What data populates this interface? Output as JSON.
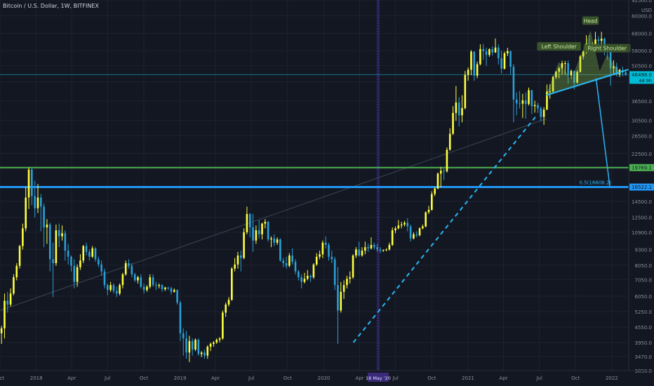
{
  "header": {
    "symbol": "Bitcoin / U.S. Dollar, 1W, BITFINEX"
  },
  "colors": {
    "background": "#131722",
    "up": "#ffff3d",
    "down": "#2a9fd6",
    "resistance": "#4caf50",
    "support": "#2196f3",
    "trendline": "#29b6f6",
    "pattern_fill": "#8bc34a",
    "price_line": "#1c6f88"
  },
  "chart_data": {
    "type": "candlestick",
    "title": "Bitcoin / U.S. Dollar, 1W, BITFINEX",
    "y_scale": "log",
    "ylim": [
      3050,
      92500
    ],
    "y_axis_currency": "USD",
    "y_ticks": [
      92500,
      80000,
      68000,
      58000,
      50500,
      43600,
      36500,
      30500,
      26500,
      22500,
      19500,
      16500,
      14500,
      12500,
      10900,
      9300,
      8050,
      7050,
      6050,
      5250,
      4550,
      3950,
      3470,
      3050
    ],
    "y_tick_labels": [
      "92500.0",
      "80000.0",
      "68000.0",
      "58000.0",
      "50500.0",
      "43600.0",
      "36500.0",
      "30500.0",
      "26500.0",
      "22500.0",
      "19500.0",
      "16500.0",
      "14500.0",
      "12500.0",
      "10900.0",
      "9300.0",
      "8050.0",
      "7050.0",
      "6050.0",
      "5250.0",
      "4550.0",
      "3950.0",
      "3470.0",
      "3050.0"
    ],
    "x_axis": {
      "start": "2017-10-01",
      "end": "2022-02-13",
      "tick_labels": [
        "Oct",
        "2018",
        "Apr",
        "Jul",
        "Oct",
        "2019",
        "Apr",
        "Jul",
        "Oct",
        "2020",
        "Apr",
        "18 May '20",
        "Jul",
        "Oct",
        "2021",
        "Apr",
        "Jul",
        "Oct",
        "2022"
      ],
      "tick_dates": [
        "2017-10-01",
        "2018-01-01",
        "2018-04-01",
        "2018-07-01",
        "2018-10-01",
        "2019-01-01",
        "2019-04-01",
        "2019-07-01",
        "2019-10-01",
        "2020-01-01",
        "2020-04-01",
        "2020-05-18",
        "2020-07-01",
        "2020-10-01",
        "2021-01-01",
        "2021-04-01",
        "2021-07-01",
        "2021-10-01",
        "2022-01-01"
      ],
      "highlighted_label": "18 May '20"
    },
    "horizontal_levels": [
      {
        "value": 19769.1,
        "label": "19769.1",
        "color": "#4caf50"
      },
      {
        "value": 16522.1,
        "label": "16522.1",
        "color": "#2196f3"
      }
    ],
    "current_price": {
      "value": 46498.0,
      "label": "46498.0",
      "sub_label": "4d 9h"
    },
    "annotations": [
      {
        "text": "Head",
        "date": "2021-11-08",
        "value": 76000
      },
      {
        "text": "Left Shoulder",
        "date": "2021-08-20",
        "value": 60000
      },
      {
        "text": "Right Shoulder",
        "date": "2021-12-20",
        "value": 59000
      },
      {
        "text": "0.5(16608.2)",
        "date": "2021-12-27",
        "value": 16608.2
      }
    ],
    "neckline": {
      "from": {
        "date": "2021-07-19",
        "value": 38500
      },
      "to": {
        "date": "2022-02-13",
        "value": 48800
      }
    },
    "projection": {
      "from": {
        "date": "2021-11-22",
        "value": 45000
      },
      "to": {
        "date": "2021-12-27",
        "value": 16608.2
      }
    },
    "dashed_trendline": {
      "from": {
        "date": "2020-03-16",
        "value": 3950
      },
      "to": {
        "date": "2021-06-21",
        "value": 31500
      }
    },
    "log_trendline": {
      "from": {
        "date": "2017-10-01",
        "value": 5300
      },
      "to": {
        "date": "2021-07-19",
        "value": 31000
      }
    },
    "candles": [
      [
        4300,
        4600,
        3900,
        4500
      ],
      [
        4500,
        6200,
        4100,
        5800
      ],
      [
        5800,
        6300,
        5200,
        5600
      ],
      [
        5600,
        6500,
        5500,
        6200
      ],
      [
        6200,
        7400,
        6100,
        7200
      ],
      [
        7200,
        8200,
        7000,
        8000
      ],
      [
        8000,
        9700,
        7800,
        9600
      ],
      [
        9600,
        11800,
        9300,
        11300
      ],
      [
        11300,
        16500,
        11000,
        15000
      ],
      [
        15000,
        19800,
        13500,
        19400
      ],
      [
        19400,
        19700,
        14000,
        15200
      ],
      [
        15200,
        17500,
        12500,
        13600
      ],
      [
        13600,
        17000,
        13000,
        15000
      ],
      [
        15000,
        15500,
        11000,
        13800
      ],
      [
        13800,
        14200,
        9500,
        11400
      ],
      [
        11400,
        12300,
        9800,
        11700
      ],
      [
        11700,
        11900,
        7600,
        8500
      ],
      [
        8500,
        9900,
        6000,
        8200
      ],
      [
        8200,
        11700,
        8000,
        11100
      ],
      [
        11100,
        11800,
        9500,
        10500
      ],
      [
        10500,
        11600,
        10100,
        10800
      ],
      [
        10800,
        11100,
        8400,
        9200
      ],
      [
        9200,
        9800,
        8100,
        8700
      ],
      [
        8700,
        8800,
        7600,
        8000
      ],
      [
        8000,
        8500,
        6500,
        6900
      ],
      [
        6900,
        8100,
        6600,
        7900
      ],
      [
        7900,
        8900,
        7700,
        8400
      ],
      [
        8400,
        9700,
        8200,
        9600
      ],
      [
        9600,
        9900,
        8800,
        9100
      ],
      [
        9100,
        9300,
        8400,
        8700
      ],
      [
        8700,
        9600,
        8600,
        9400
      ],
      [
        9400,
        9500,
        8300,
        8500
      ],
      [
        8500,
        8700,
        7900,
        8100
      ],
      [
        8100,
        8400,
        7300,
        7600
      ],
      [
        7600,
        7800,
        6500,
        6700
      ],
      [
        6700,
        6800,
        6100,
        6400
      ],
      [
        6400,
        6900,
        6300,
        6700
      ],
      [
        6700,
        6800,
        6200,
        6350
      ],
      [
        6350,
        6600,
        6000,
        6200
      ],
      [
        6200,
        6800,
        6100,
        6700
      ],
      [
        6700,
        7500,
        6500,
        7400
      ],
      [
        7400,
        8400,
        7300,
        8200
      ],
      [
        8200,
        8500,
        7800,
        8000
      ],
      [
        8000,
        8200,
        7200,
        7400
      ],
      [
        7400,
        7500,
        6900,
        7000
      ],
      [
        7000,
        7300,
        6800,
        7200
      ],
      [
        7200,
        7400,
        6500,
        6600
      ],
      [
        6600,
        6800,
        6200,
        6400
      ],
      [
        6400,
        6700,
        6300,
        6600
      ],
      [
        6600,
        7400,
        6500,
        7200
      ],
      [
        7200,
        7400,
        6600,
        6700
      ],
      [
        6700,
        6900,
        6400,
        6650
      ],
      [
        6650,
        6800,
        6500,
        6700
      ],
      [
        6700,
        6750,
        6300,
        6450
      ],
      [
        6450,
        6600,
        6350,
        6550
      ],
      [
        6550,
        6600,
        6400,
        6500
      ],
      [
        6500,
        6600,
        6150,
        6300
      ],
      [
        6300,
        6500,
        6250,
        6400
      ],
      [
        6400,
        6450,
        5600,
        5700
      ],
      [
        5700,
        5800,
        4000,
        4300
      ],
      [
        4300,
        4500,
        3500,
        4100
      ],
      [
        4100,
        4400,
        3400,
        3600
      ],
      [
        3600,
        4200,
        3300,
        4000
      ],
      [
        4000,
        4100,
        3500,
        3700
      ],
      [
        3700,
        4100,
        3650,
        4050
      ],
      [
        4050,
        4100,
        3500,
        3550
      ],
      [
        3550,
        3650,
        3450,
        3600
      ],
      [
        3600,
        3700,
        3400,
        3500
      ],
      [
        3500,
        3850,
        3400,
        3800
      ],
      [
        3800,
        3950,
        3650,
        3900
      ],
      [
        3900,
        4000,
        3800,
        3950
      ],
      [
        3950,
        4100,
        3900,
        4050
      ],
      [
        4050,
        4150,
        3950,
        4100
      ],
      [
        4100,
        5300,
        4050,
        5200
      ],
      [
        5200,
        5700,
        5000,
        5600
      ],
      [
        5600,
        6000,
        5500,
        5850
      ],
      [
        5850,
        7900,
        5800,
        7800
      ],
      [
        7800,
        8600,
        7600,
        8100
      ],
      [
        8100,
        9100,
        7800,
        8800
      ],
      [
        8800,
        9200,
        7600,
        8600
      ],
      [
        8600,
        11300,
        8500,
        10900
      ],
      [
        10900,
        13800,
        10700,
        12900
      ],
      [
        12900,
        13000,
        10400,
        11400
      ],
      [
        11400,
        12900,
        9100,
        10100
      ],
      [
        10100,
        11600,
        9800,
        11100
      ],
      [
        11100,
        12200,
        10300,
        10700
      ],
      [
        10700,
        11900,
        10200,
        11800
      ],
      [
        11800,
        12300,
        11300,
        12000
      ],
      [
        12000,
        12100,
        10000,
        10200
      ],
      [
        10200,
        10500,
        9500,
        10300
      ],
      [
        10300,
        10700,
        9600,
        9900
      ],
      [
        9900,
        10400,
        9700,
        10200
      ],
      [
        10200,
        10300,
        8300,
        8400
      ],
      [
        8400,
        8600,
        7900,
        8200
      ],
      [
        8200,
        8700,
        7800,
        8000
      ],
      [
        8000,
        9000,
        7900,
        8800
      ],
      [
        8800,
        9400,
        8100,
        8300
      ],
      [
        8300,
        8500,
        7400,
        7600
      ],
      [
        7600,
        7700,
        7000,
        7200
      ],
      [
        7200,
        7400,
        6500,
        6900
      ],
      [
        6900,
        7500,
        6800,
        7100
      ],
      [
        7100,
        7700,
        7000,
        7300
      ],
      [
        7300,
        7400,
        6900,
        7200
      ],
      [
        7200,
        8200,
        7100,
        8100
      ],
      [
        8100,
        9000,
        8000,
        8700
      ],
      [
        8700,
        9200,
        8500,
        8900
      ],
      [
        8900,
        10100,
        8600,
        9900
      ],
      [
        9900,
        10500,
        9400,
        9700
      ],
      [
        9700,
        9900,
        8400,
        8700
      ],
      [
        8700,
        9200,
        8200,
        8500
      ],
      [
        8500,
        8700,
        6400,
        6700
      ],
      [
        6700,
        7900,
        3900,
        5300
      ],
      [
        5300,
        6900,
        5200,
        6300
      ],
      [
        6300,
        7000,
        5900,
        6700
      ],
      [
        6700,
        7300,
        6500,
        7100
      ],
      [
        7100,
        7600,
        6800,
        7200
      ],
      [
        7200,
        8900,
        7100,
        8800
      ],
      [
        8800,
        9500,
        8600,
        9300
      ],
      [
        9300,
        10000,
        8700,
        8800
      ],
      [
        8800,
        9500,
        8700,
        9200
      ],
      [
        9200,
        10000,
        8900,
        9500
      ],
      [
        9500,
        9800,
        9100,
        9400
      ],
      [
        9400,
        10400,
        9300,
        9700
      ],
      [
        9700,
        9900,
        9300,
        9500
      ],
      [
        9500,
        9800,
        9100,
        9300
      ],
      [
        9300,
        9500,
        9000,
        9200
      ],
      [
        9200,
        9300,
        9100,
        9250
      ],
      [
        9250,
        9400,
        9150,
        9300
      ],
      [
        9300,
        9900,
        9200,
        9700
      ],
      [
        9700,
        11400,
        9600,
        11100
      ],
      [
        11100,
        11500,
        10800,
        11300
      ],
      [
        11300,
        12200,
        11200,
        11600
      ],
      [
        11600,
        12000,
        11300,
        11700
      ],
      [
        11700,
        12100,
        11500,
        11900
      ],
      [
        11900,
        12400,
        11000,
        11500
      ],
      [
        11500,
        11700,
        10000,
        10300
      ],
      [
        10300,
        10900,
        10200,
        10700
      ],
      [
        10700,
        11000,
        10400,
        10600
      ],
      [
        10600,
        11400,
        10500,
        11300
      ],
      [
        11300,
        11700,
        11200,
        11500
      ],
      [
        11500,
        13200,
        11400,
        13100
      ],
      [
        13100,
        13900,
        12900,
        13400
      ],
      [
        13400,
        15900,
        13300,
        15500
      ],
      [
        15500,
        16500,
        15200,
        16300
      ],
      [
        16300,
        18900,
        16200,
        18700
      ],
      [
        18700,
        19900,
        16500,
        19200
      ],
      [
        19200,
        19600,
        17600,
        19100
      ],
      [
        19100,
        23800,
        18900,
        23300
      ],
      [
        23300,
        28400,
        23100,
        27000
      ],
      [
        27000,
        34800,
        26700,
        32700
      ],
      [
        32700,
        41900,
        30400,
        36000
      ],
      [
        36000,
        37800,
        28900,
        32000
      ],
      [
        32000,
        38500,
        30000,
        34200
      ],
      [
        34200,
        48100,
        33800,
        46400
      ],
      [
        46400,
        49700,
        44000,
        48700
      ],
      [
        48700,
        58300,
        46300,
        57500
      ],
      [
        57500,
        57600,
        44000,
        46100
      ],
      [
        46100,
        52500,
        45000,
        51200
      ],
      [
        51200,
        61500,
        50700,
        58900
      ],
      [
        58900,
        61700,
        53300,
        57700
      ],
      [
        57700,
        59600,
        50500,
        55800
      ],
      [
        55800,
        59300,
        54800,
        58800
      ],
      [
        58800,
        60400,
        55500,
        57100
      ],
      [
        57100,
        64900,
        56800,
        59700
      ],
      [
        59700,
        61400,
        51100,
        54100
      ],
      [
        54100,
        58000,
        47000,
        49100
      ],
      [
        49100,
        57500,
        48800,
        56600
      ],
      [
        56600,
        59600,
        55200,
        57800
      ],
      [
        57800,
        58000,
        46600,
        50000
      ],
      [
        50000,
        51300,
        30000,
        37000
      ],
      [
        37000,
        39500,
        32000,
        35700
      ],
      [
        35700,
        40000,
        34100,
        35600
      ],
      [
        35600,
        39000,
        31200,
        36700
      ],
      [
        36700,
        39500,
        31000,
        35500
      ],
      [
        35500,
        41300,
        35000,
        40300
      ],
      [
        40300,
        40500,
        32400,
        34800
      ],
      [
        34800,
        36600,
        32800,
        35200
      ],
      [
        35200,
        35900,
        32700,
        34100
      ],
      [
        34100,
        34700,
        30300,
        31500
      ],
      [
        31500,
        34500,
        29300,
        33700
      ],
      [
        33700,
        42500,
        33600,
        39800
      ],
      [
        39800,
        42600,
        37300,
        39900
      ],
      [
        39900,
        46000,
        39500,
        45500
      ],
      [
        45500,
        48100,
        44700,
        47800
      ],
      [
        47800,
        50000,
        45000,
        49300
      ],
      [
        49300,
        52900,
        46500,
        51700
      ],
      [
        51700,
        52800,
        46500,
        51700
      ],
      [
        51700,
        53000,
        42800,
        46200
      ],
      [
        46200,
        48800,
        44700,
        48100
      ],
      [
        48100,
        48400,
        40600,
        43200
      ],
      [
        43200,
        48400,
        42900,
        47700
      ],
      [
        47700,
        55700,
        47400,
        55000
      ],
      [
        55000,
        58000,
        53600,
        57600
      ],
      [
        57600,
        66900,
        56400,
        62000
      ],
      [
        62000,
        67000,
        58800,
        60900
      ],
      [
        60900,
        62600,
        58100,
        61400
      ],
      [
        61400,
        69000,
        60100,
        64300
      ],
      [
        64300,
        66300,
        60000,
        63500
      ],
      [
        63500,
        69000,
        57600,
        64800
      ],
      [
        64800,
        65400,
        55500,
        57600
      ],
      [
        57600,
        58800,
        53200,
        57200
      ],
      [
        57200,
        59200,
        42000,
        49300
      ],
      [
        49300,
        53100,
        47100,
        50100
      ],
      [
        50100,
        51900,
        45700,
        46700
      ],
      [
        46700,
        49100,
        45500,
        48600
      ],
      [
        48600,
        50100,
        45800,
        47500
      ],
      [
        47500,
        48900,
        46000,
        46498
      ]
    ]
  }
}
